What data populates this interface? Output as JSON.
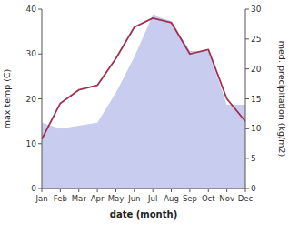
{
  "chart_data": {
    "type": "line",
    "categories": [
      "Jan",
      "Feb",
      "Mar",
      "Apr",
      "May",
      "Jun",
      "Jul",
      "Aug",
      "Sep",
      "Oct",
      "Nov",
      "Dec"
    ],
    "xlabel": "date (month)",
    "ylabel": "max temp (C)",
    "y2label": "med. precipitation (kg/m2)",
    "ylim": [
      0,
      40
    ],
    "yticks": [
      0,
      10,
      20,
      30,
      40
    ],
    "y2lim": [
      0,
      30
    ],
    "y2ticks": [
      0,
      5,
      10,
      15,
      20,
      25,
      30
    ],
    "grid": false,
    "series": [
      {
        "type": "area",
        "axis": "y2",
        "color": "#c8ccee",
        "values": [
          11,
          10,
          10.5,
          11,
          16,
          22,
          29,
          28,
          23,
          23,
          14,
          14
        ]
      },
      {
        "type": "line",
        "color": "#a03050",
        "values": [
          11,
          19,
          22,
          23,
          29,
          36,
          38,
          37,
          30,
          31,
          20,
          15
        ]
      }
    ]
  }
}
